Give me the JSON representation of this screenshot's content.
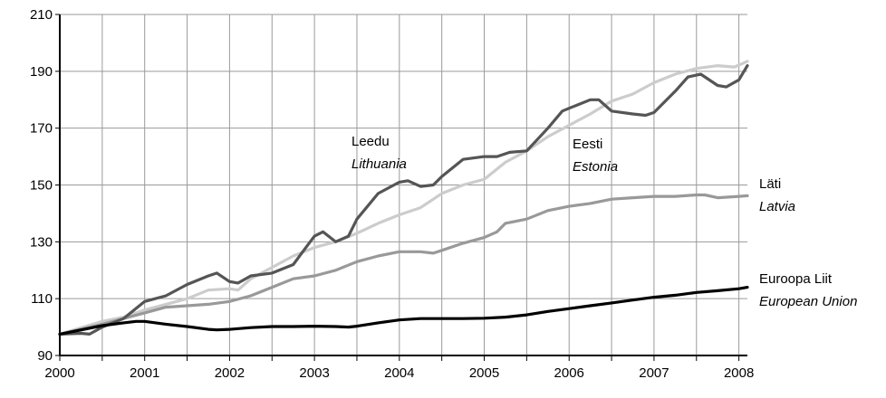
{
  "chart_data": {
    "type": "line",
    "title": "",
    "xlabel": "",
    "ylabel": "",
    "xlim": [
      2000,
      2008.1
    ],
    "ylim": [
      90,
      210
    ],
    "x_ticks": [
      2000,
      2001,
      2002,
      2003,
      2004,
      2005,
      2006,
      2007,
      2008
    ],
    "y_ticks": [
      90,
      110,
      130,
      150,
      170,
      190,
      210
    ],
    "grid": true,
    "legend": "none",
    "series": [
      {
        "name": "Leedu / Lithuania",
        "label_et": "Leedu",
        "label_en": "Lithuania",
        "color": "#555555",
        "points": [
          [
            2000.0,
            97.5
          ],
          [
            2000.25,
            97.8
          ],
          [
            2000.35,
            97.5
          ],
          [
            2000.5,
            100
          ],
          [
            2000.75,
            103
          ],
          [
            2001.0,
            109
          ],
          [
            2001.25,
            111
          ],
          [
            2001.5,
            115
          ],
          [
            2001.75,
            118
          ],
          [
            2001.85,
            119
          ],
          [
            2002.0,
            116
          ],
          [
            2002.1,
            115.5
          ],
          [
            2002.25,
            118
          ],
          [
            2002.5,
            119
          ],
          [
            2002.75,
            122
          ],
          [
            2002.9,
            128
          ],
          [
            2003.0,
            132
          ],
          [
            2003.1,
            133.5
          ],
          [
            2003.25,
            130
          ],
          [
            2003.4,
            132
          ],
          [
            2003.5,
            138
          ],
          [
            2003.75,
            147
          ],
          [
            2004.0,
            151
          ],
          [
            2004.1,
            151.5
          ],
          [
            2004.25,
            149.5
          ],
          [
            2004.4,
            150
          ],
          [
            2004.5,
            153
          ],
          [
            2004.75,
            159
          ],
          [
            2005.0,
            160
          ],
          [
            2005.15,
            160
          ],
          [
            2005.3,
            161.5
          ],
          [
            2005.5,
            162
          ],
          [
            2005.75,
            170
          ],
          [
            2005.92,
            176
          ],
          [
            2006.0,
            177
          ],
          [
            2006.25,
            180
          ],
          [
            2006.35,
            180
          ],
          [
            2006.5,
            176
          ],
          [
            2006.75,
            175
          ],
          [
            2006.9,
            174.5
          ],
          [
            2007.0,
            175.5
          ],
          [
            2007.25,
            183
          ],
          [
            2007.4,
            188
          ],
          [
            2007.55,
            189
          ],
          [
            2007.75,
            185
          ],
          [
            2007.85,
            184.5
          ],
          [
            2008.0,
            187
          ],
          [
            2008.1,
            192
          ]
        ]
      },
      {
        "name": "Eesti / Estonia",
        "label_et": "Eesti",
        "label_en": "Estonia",
        "color": "#cccccc",
        "points": [
          [
            2000.0,
            97.5
          ],
          [
            2000.5,
            102
          ],
          [
            2000.75,
            103.5
          ],
          [
            2001.0,
            106
          ],
          [
            2001.5,
            110
          ],
          [
            2001.75,
            113
          ],
          [
            2002.0,
            113.5
          ],
          [
            2002.1,
            113
          ],
          [
            2002.25,
            117
          ],
          [
            2002.5,
            121
          ],
          [
            2002.75,
            125
          ],
          [
            2003.0,
            128
          ],
          [
            2003.25,
            130
          ],
          [
            2003.5,
            133
          ],
          [
            2003.75,
            136.5
          ],
          [
            2004.0,
            139.5
          ],
          [
            2004.25,
            142
          ],
          [
            2004.5,
            147
          ],
          [
            2004.75,
            150
          ],
          [
            2005.0,
            152
          ],
          [
            2005.25,
            158
          ],
          [
            2005.5,
            162
          ],
          [
            2005.75,
            167
          ],
          [
            2006.0,
            171
          ],
          [
            2006.25,
            175
          ],
          [
            2006.5,
            179.5
          ],
          [
            2006.75,
            182
          ],
          [
            2007.0,
            186
          ],
          [
            2007.25,
            189
          ],
          [
            2007.5,
            191
          ],
          [
            2007.75,
            192
          ],
          [
            2007.95,
            191.5
          ],
          [
            2008.1,
            193.5
          ]
        ]
      },
      {
        "name": "Läti / Latvia",
        "label_et": "Läti",
        "label_en": "Latvia",
        "color": "#999999",
        "points": [
          [
            2000.0,
            97.5
          ],
          [
            2000.5,
            101
          ],
          [
            2001.0,
            105
          ],
          [
            2001.25,
            107
          ],
          [
            2001.5,
            107.5
          ],
          [
            2001.75,
            108
          ],
          [
            2002.0,
            109
          ],
          [
            2002.25,
            111
          ],
          [
            2002.5,
            114
          ],
          [
            2002.75,
            117
          ],
          [
            2003.0,
            118
          ],
          [
            2003.25,
            120
          ],
          [
            2003.5,
            123
          ],
          [
            2003.75,
            125
          ],
          [
            2004.0,
            126.5
          ],
          [
            2004.25,
            126.5
          ],
          [
            2004.4,
            126
          ],
          [
            2004.5,
            127
          ],
          [
            2004.75,
            129.5
          ],
          [
            2005.0,
            131.5
          ],
          [
            2005.15,
            133.5
          ],
          [
            2005.25,
            136.5
          ],
          [
            2005.5,
            138
          ],
          [
            2005.75,
            141
          ],
          [
            2006.0,
            142.5
          ],
          [
            2006.25,
            143.5
          ],
          [
            2006.5,
            145
          ],
          [
            2006.75,
            145.5
          ],
          [
            2007.0,
            146
          ],
          [
            2007.25,
            146
          ],
          [
            2007.5,
            146.5
          ],
          [
            2007.6,
            146.5
          ],
          [
            2007.75,
            145.5
          ],
          [
            2008.0,
            146
          ],
          [
            2008.1,
            146.2
          ]
        ]
      },
      {
        "name": "Euroopa Liit / European Union",
        "label_et": "Euroopa Liit",
        "label_en": "European Union",
        "color": "#000000",
        "points": [
          [
            2000.0,
            97.5
          ],
          [
            2000.5,
            100.5
          ],
          [
            2000.75,
            101.5
          ],
          [
            2000.9,
            102
          ],
          [
            2001.0,
            102
          ],
          [
            2001.25,
            101
          ],
          [
            2001.5,
            100.2
          ],
          [
            2001.75,
            99.2
          ],
          [
            2001.85,
            99
          ],
          [
            2002.0,
            99.2
          ],
          [
            2002.25,
            99.8
          ],
          [
            2002.5,
            100.2
          ],
          [
            2002.75,
            100.2
          ],
          [
            2003.0,
            100.3
          ],
          [
            2003.25,
            100.2
          ],
          [
            2003.4,
            100
          ],
          [
            2003.5,
            100.3
          ],
          [
            2003.75,
            101.5
          ],
          [
            2004.0,
            102.5
          ],
          [
            2004.25,
            103
          ],
          [
            2004.5,
            103
          ],
          [
            2004.75,
            103
          ],
          [
            2005.0,
            103.1
          ],
          [
            2005.25,
            103.5
          ],
          [
            2005.5,
            104.3
          ],
          [
            2005.75,
            105.5
          ],
          [
            2006.0,
            106.5
          ],
          [
            2006.25,
            107.5
          ],
          [
            2006.5,
            108.5
          ],
          [
            2006.75,
            109.5
          ],
          [
            2007.0,
            110.5
          ],
          [
            2007.25,
            111.2
          ],
          [
            2007.5,
            112.2
          ],
          [
            2007.75,
            112.8
          ],
          [
            2008.0,
            113.5
          ],
          [
            2008.1,
            114
          ]
        ]
      }
    ]
  }
}
